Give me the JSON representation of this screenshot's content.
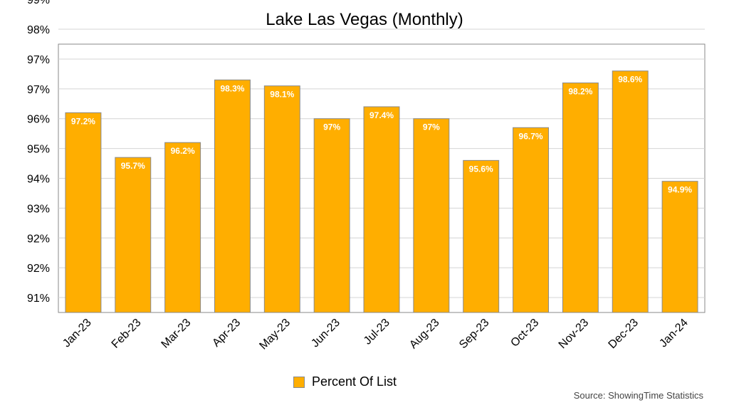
{
  "chart_data": {
    "type": "bar",
    "title": "Lake Las Vegas (Monthly)",
    "categories": [
      "Jan-23",
      "Feb-23",
      "Mar-23",
      "Apr-23",
      "May-23",
      "Jun-23",
      "Jul-23",
      "Aug-23",
      "Sep-23",
      "Oct-23",
      "Nov-23",
      "Dec-23",
      "Jan-24"
    ],
    "series": [
      {
        "name": "Percent Of List",
        "values": [
          97.2,
          95.7,
          96.2,
          98.3,
          98.1,
          97.0,
          97.4,
          97.0,
          95.6,
          96.7,
          98.2,
          98.6,
          94.9
        ],
        "labels": [
          "97.2%",
          "95.7%",
          "96.2%",
          "98.3%",
          "98.1%",
          "97%",
          "97.4%",
          "97%",
          "95.6%",
          "96.7%",
          "98.2%",
          "98.6%",
          "94.9%"
        ],
        "color": "#ffae00"
      }
    ],
    "y_tick_labels": [
      "91%",
      "92%",
      "92%",
      "93%",
      "94%",
      "95%",
      "96%",
      "97%",
      "97%",
      "98%",
      "99%"
    ],
    "ylim": [
      90.5,
      99.5
    ],
    "grid": true,
    "legend_position": "bottom-center",
    "source": "Source: ShowingTime Statistics"
  }
}
